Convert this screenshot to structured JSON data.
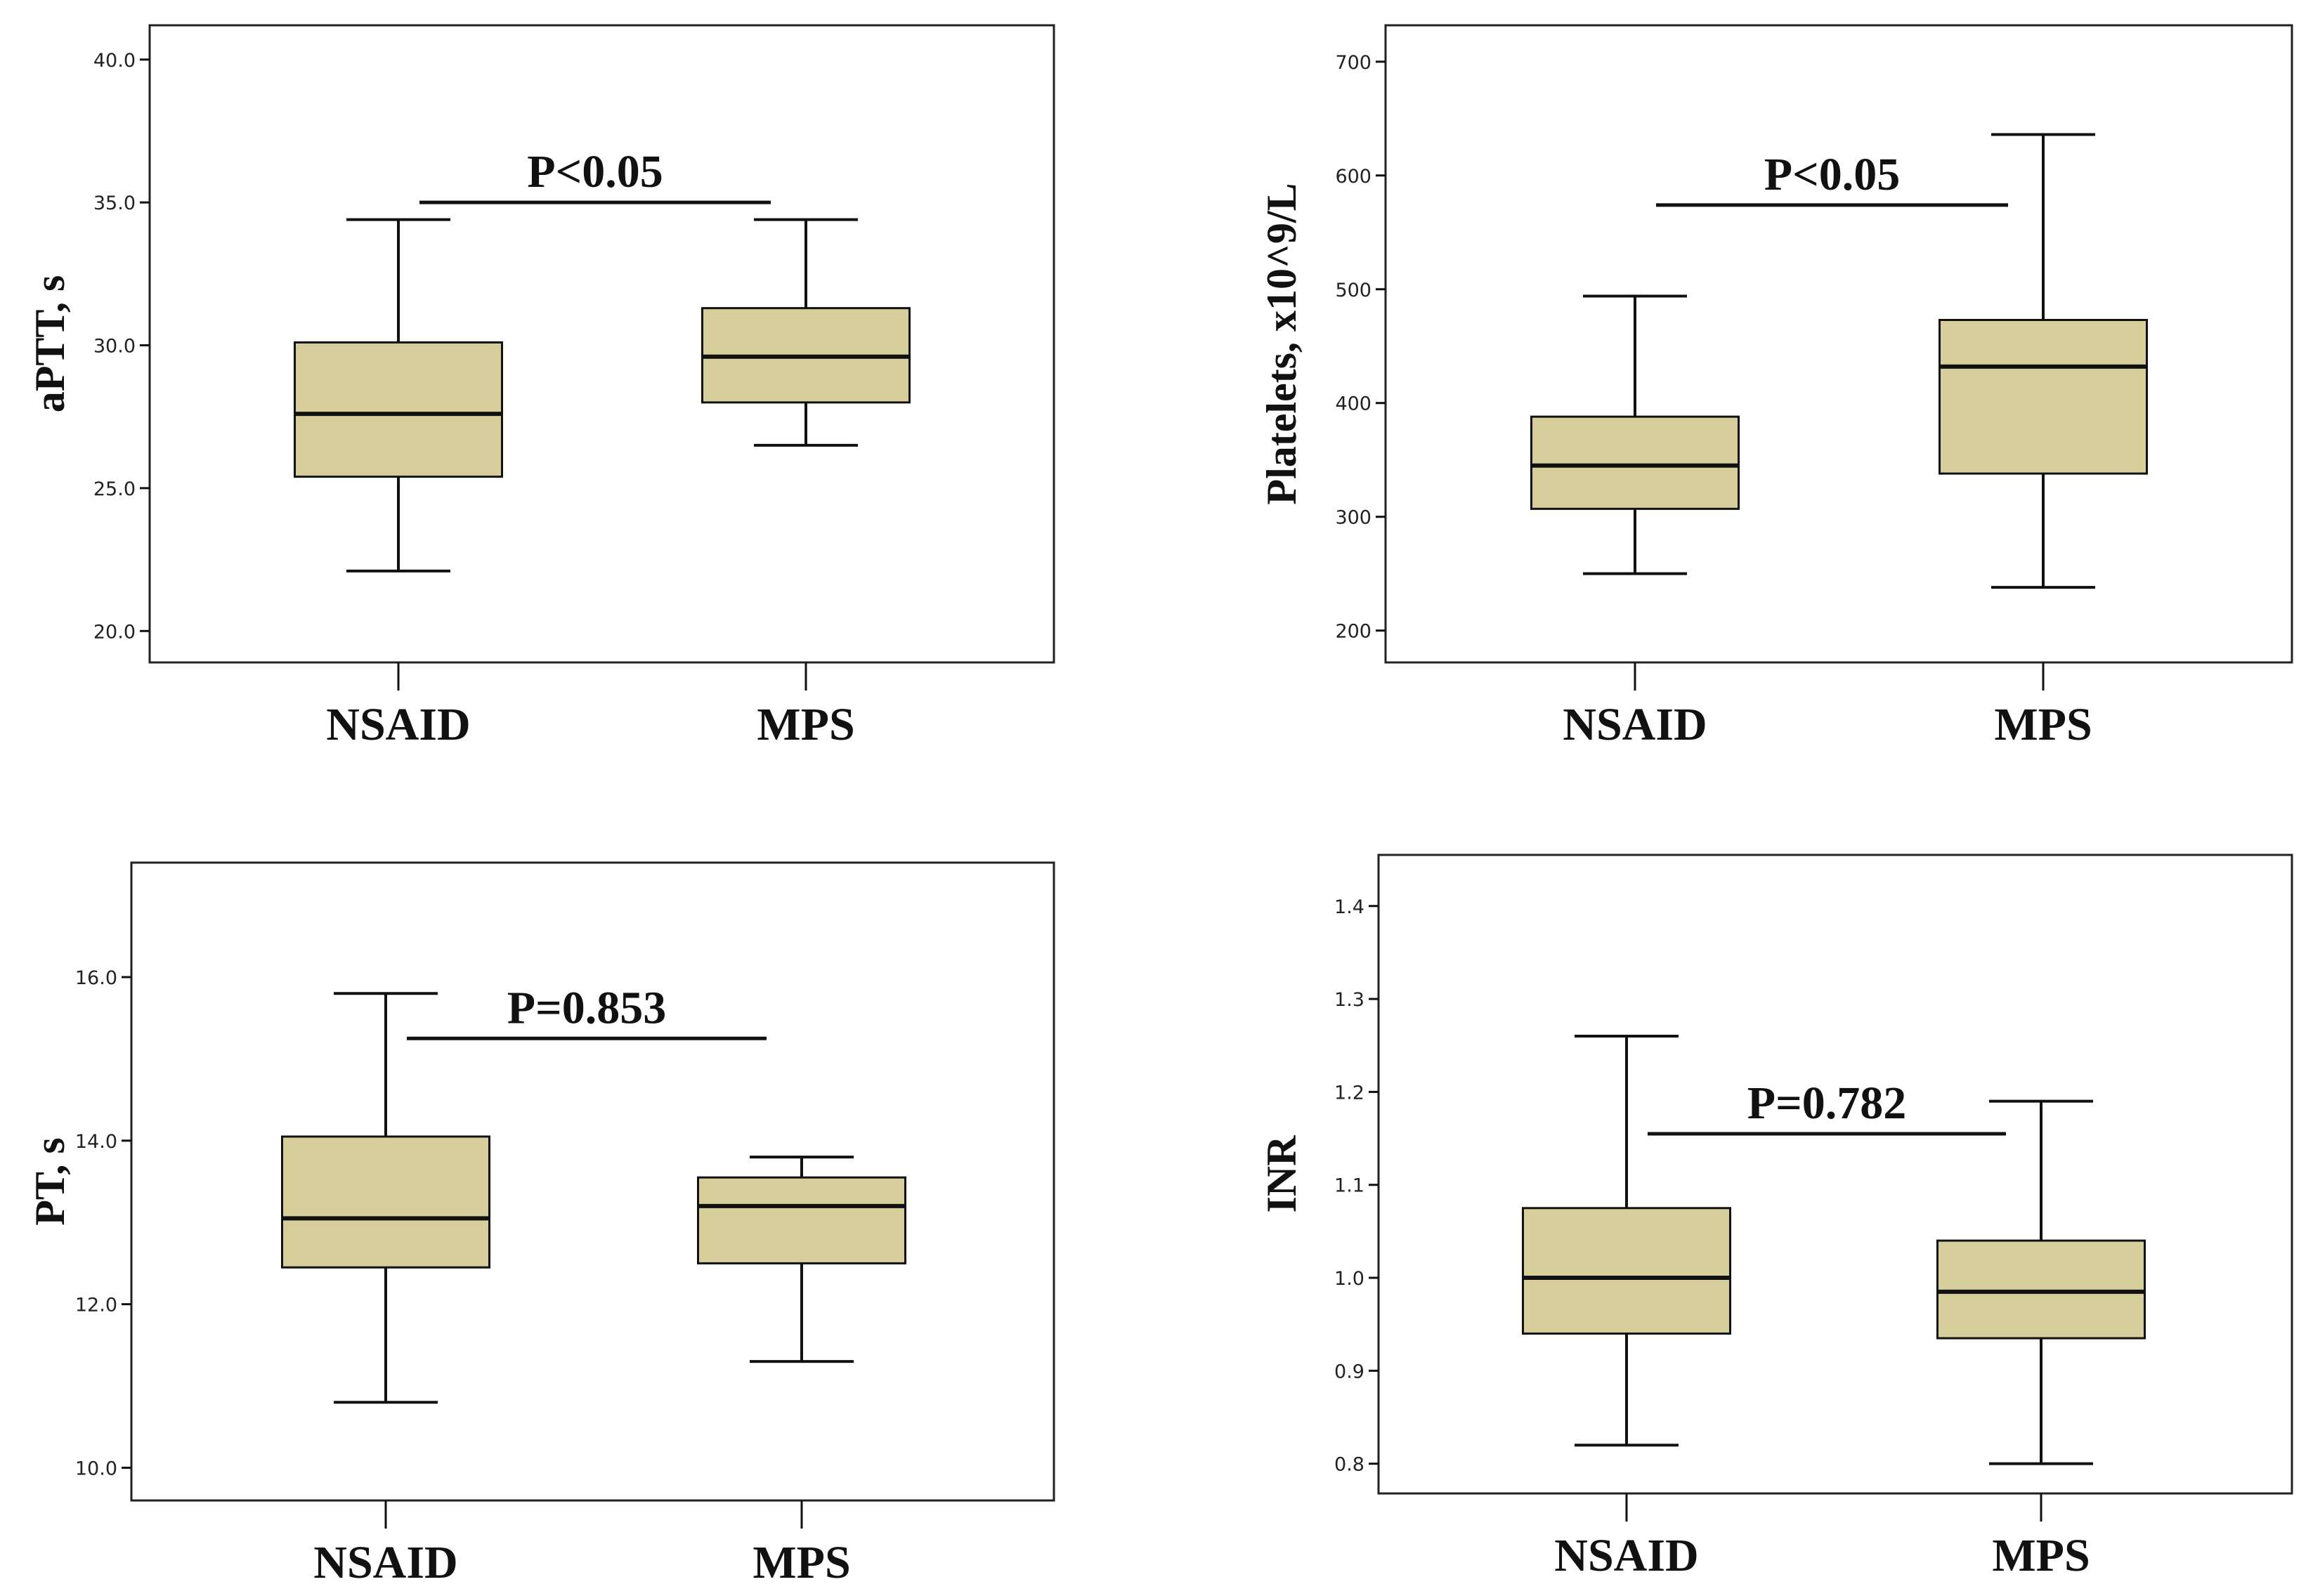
{
  "chart_data": [
    {
      "type": "box",
      "ylabel": "aPTT, s",
      "ylim": [
        18.9,
        41.2
      ],
      "ticks": [
        20.0,
        25.0,
        30.0,
        35.0,
        40.0
      ],
      "tick_labels": [
        "20.0",
        "25.0",
        "30.0",
        "35.0",
        "40.0"
      ],
      "categories": [
        "NSAID",
        "MPS"
      ],
      "boxes": [
        {
          "min": 22.1,
          "q1": 25.4,
          "median": 27.6,
          "q3": 30.1,
          "max": 34.4
        },
        {
          "min": 26.5,
          "q1": 28.0,
          "median": 29.6,
          "q3": 31.3,
          "max": 34.4
        }
      ],
      "annotation": {
        "text": "P<0.05",
        "y": 35.0
      }
    },
    {
      "type": "box",
      "ylabel": "Platelets, x10^9/L",
      "ylim": [
        172,
        732
      ],
      "ticks": [
        200,
        300,
        400,
        500,
        600,
        700
      ],
      "tick_labels": [
        "200",
        "300",
        "400",
        "500",
        "600",
        "700"
      ],
      "categories": [
        "NSAID",
        "MPS"
      ],
      "boxes": [
        {
          "min": 250,
          "q1": 307,
          "median": 345,
          "q3": 388,
          "max": 494
        },
        {
          "min": 238,
          "q1": 338,
          "median": 432,
          "q3": 473,
          "max": 636
        }
      ],
      "annotation": {
        "text": "P<0.05",
        "y": 574
      }
    },
    {
      "type": "box",
      "ylabel": "PT, s",
      "ylim": [
        9.6,
        17.4
      ],
      "ticks": [
        10.0,
        12.0,
        14.0,
        16.0
      ],
      "tick_labels": [
        "10.0",
        "12.0",
        "14.0",
        "16.0"
      ],
      "categories": [
        "NSAID",
        "MPS"
      ],
      "boxes": [
        {
          "min": 10.8,
          "q1": 12.45,
          "median": 13.05,
          "q3": 14.05,
          "max": 15.8
        },
        {
          "min": 11.3,
          "q1": 12.5,
          "median": 13.2,
          "q3": 13.55,
          "max": 13.8
        }
      ],
      "annotation": {
        "text": "P=0.853",
        "y": 15.25
      }
    },
    {
      "type": "box",
      "ylabel": "INR",
      "ylim": [
        0.768,
        1.455
      ],
      "ticks": [
        0.8,
        0.9,
        1.0,
        1.1,
        1.2,
        1.3,
        1.4
      ],
      "tick_labels": [
        "0.8",
        "0.9",
        "1.0",
        "1.1",
        "1.2",
        "1.3",
        "1.4"
      ],
      "categories": [
        "NSAID",
        "MPS"
      ],
      "boxes": [
        {
          "min": 0.82,
          "q1": 0.94,
          "median": 1.0,
          "q3": 1.075,
          "max": 1.26
        },
        {
          "min": 0.8,
          "q1": 0.935,
          "median": 0.985,
          "q3": 1.04,
          "max": 1.19
        }
      ],
      "annotation": {
        "text": "P=0.782",
        "y": 1.155
      }
    }
  ],
  "colors": {
    "box_fill": "#D7CF9B",
    "line": "#111111",
    "frame": "#222222",
    "background": "#FFFFFF"
  }
}
